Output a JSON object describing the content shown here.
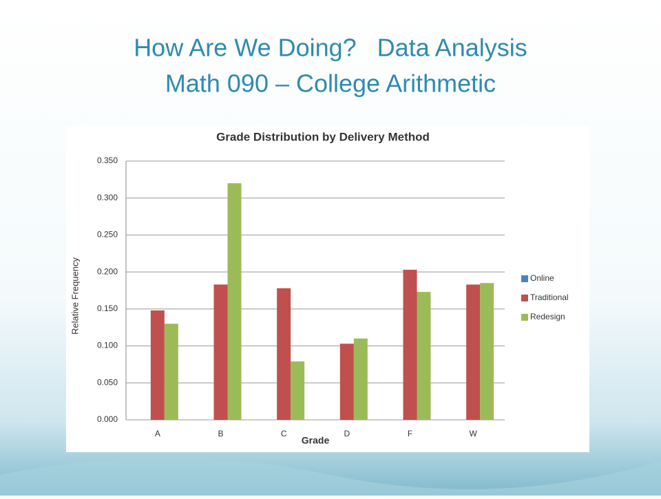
{
  "slide": {
    "title_lines": [
      "How Are We Doing?   Data Analysis",
      "Math 090 – College Arithmetic"
    ]
  },
  "chart_data": {
    "type": "bar",
    "title": "Grade Distribution by Delivery Method",
    "x_label": "Grade",
    "y_label": "Relative Frequency",
    "categories": [
      "A",
      "B",
      "C",
      "D",
      "F",
      "W"
    ],
    "series": [
      {
        "name": "Online",
        "color": "#4f81bd",
        "values": [
          null,
          null,
          null,
          null,
          null,
          null
        ]
      },
      {
        "name": "Traditional",
        "color": "#c0504d",
        "values": [
          0.148,
          0.183,
          0.178,
          0.103,
          0.203,
          0.183
        ]
      },
      {
        "name": "Redesign",
        "color": "#9bbb59",
        "values": [
          0.13,
          0.32,
          0.079,
          0.11,
          0.173,
          0.185
        ]
      }
    ],
    "ylim": [
      0,
      0.35
    ],
    "yticks": [
      {
        "value": 0,
        "label": "0.000"
      },
      {
        "value": 0.05,
        "label": "0.050"
      },
      {
        "value": 0.1,
        "label": "0.100"
      },
      {
        "value": 0.15,
        "label": "0.150"
      },
      {
        "value": 0.2,
        "label": "0.200"
      },
      {
        "value": 0.25,
        "label": "0.250"
      },
      {
        "value": 0.3,
        "label": "0.300"
      },
      {
        "value": 0.35,
        "label": "0.350"
      }
    ],
    "grid": true,
    "legend": "right"
  }
}
